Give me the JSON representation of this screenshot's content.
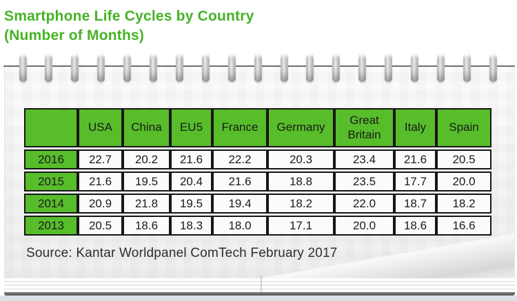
{
  "title": {
    "line1": "Smartphone Life Cycles by Country",
    "line2": "(Number of Months)"
  },
  "table": {
    "columns": [
      "",
      "USA",
      "China",
      "EU5",
      "France",
      "Germany",
      "Great Britain",
      "Italy",
      "Spain"
    ],
    "rows": [
      {
        "year": "2016",
        "values": [
          "22.7",
          "20.2",
          "21.6",
          "22.2",
          "20.3",
          "23.4",
          "21.6",
          "20.5"
        ]
      },
      {
        "year": "2015",
        "values": [
          "21.6",
          "19.5",
          "20.4",
          "21.6",
          "18.8",
          "23.5",
          "17.7",
          "20.0"
        ]
      },
      {
        "year": "2014",
        "values": [
          "20.9",
          "21.8",
          "19.5",
          "19.4",
          "18.2",
          "22.0",
          "18.7",
          "18.2"
        ]
      },
      {
        "year": "2013",
        "values": [
          "20.5",
          "18.6",
          "18.3",
          "18.0",
          "17.1",
          "20.0",
          "18.6",
          "16.6"
        ]
      }
    ]
  },
  "source": "Source: Kantar Worldpanel ComTech February 2017",
  "colors": {
    "title_green": "#46b226",
    "cell_green": "#57bd2b",
    "table_border": "#161616"
  },
  "chart_data": {
    "type": "table",
    "title": "Smartphone Life Cycles by Country (Number of Months)",
    "categories": [
      "USA",
      "China",
      "EU5",
      "France",
      "Germany",
      "Great Britain",
      "Italy",
      "Spain"
    ],
    "series": [
      {
        "name": "2016",
        "values": [
          22.7,
          20.2,
          21.6,
          22.2,
          20.3,
          23.4,
          21.6,
          20.5
        ]
      },
      {
        "name": "2015",
        "values": [
          21.6,
          19.5,
          20.4,
          21.6,
          18.8,
          23.5,
          17.7,
          20.0
        ]
      },
      {
        "name": "2014",
        "values": [
          20.9,
          21.8,
          19.5,
          19.4,
          18.2,
          22.0,
          18.7,
          18.2
        ]
      },
      {
        "name": "2013",
        "values": [
          20.5,
          18.6,
          18.3,
          18.0,
          17.1,
          20.0,
          18.6,
          16.6
        ]
      }
    ],
    "source": "Source: Kantar Worldpanel ComTech February 2017",
    "ylabel": "Number of Months"
  }
}
